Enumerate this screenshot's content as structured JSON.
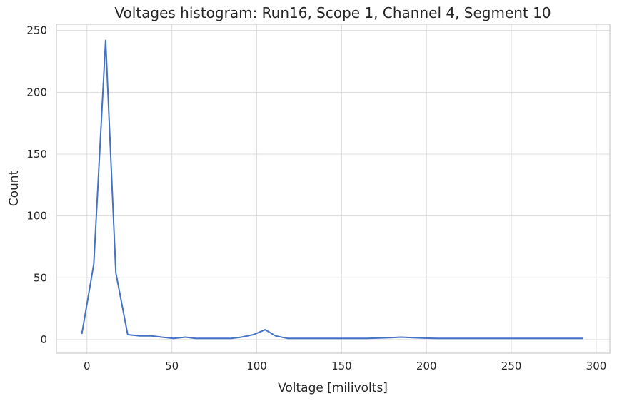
{
  "chart_data": {
    "type": "line",
    "title": "Voltages histogram: Run16, Scope 1, Channel 4, Segment 10",
    "xlabel": "Voltage [milivolts]",
    "ylabel": "Count",
    "xlim": [
      -18,
      308
    ],
    "ylim": [
      -11,
      255
    ],
    "xticks": [
      0,
      50,
      100,
      150,
      200,
      250,
      300
    ],
    "yticks": [
      0,
      50,
      100,
      150,
      200,
      250
    ],
    "grid": true,
    "series": [
      {
        "color": "#4472c4",
        "x": [
          -3,
          4,
          11,
          17,
          24,
          31,
          38,
          44,
          51,
          58,
          64,
          71,
          78,
          85,
          91,
          98,
          105,
          111,
          118,
          125,
          132,
          138,
          145,
          152,
          159,
          165,
          172,
          179,
          185,
          192,
          199,
          206,
          212,
          219,
          226,
          233,
          239,
          246,
          253,
          260,
          266,
          273,
          280,
          287,
          292
        ],
        "y": [
          5,
          61,
          242,
          54,
          4,
          3,
          3,
          2,
          1,
          2,
          1,
          1,
          1,
          1,
          2,
          4,
          8,
          3,
          1,
          1,
          1,
          1,
          1,
          1,
          1,
          1,
          1.3,
          1.6,
          2,
          1.6,
          1.2,
          1,
          1,
          1,
          1,
          1,
          1,
          1,
          1,
          1,
          1,
          1,
          1,
          1,
          1
        ]
      }
    ]
  }
}
